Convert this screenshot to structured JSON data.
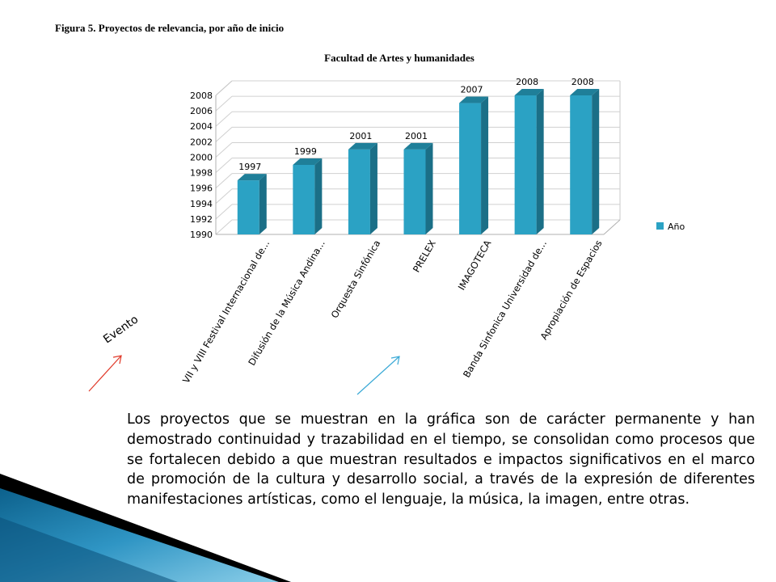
{
  "figure": {
    "caption": "Figura 5. Proyectos de relevancia, por año de inicio"
  },
  "chart_data": {
    "type": "bar",
    "title": "Facultad de Artes y humanidades",
    "xlabel": "Evento",
    "ylabel": "",
    "categories": [
      "VII y VIII Festival Internacional de...",
      "Difusión de la Música Andina...",
      "Orquesta Sinfónica",
      "PRELEX",
      "IMAGOTECA",
      "Banda Sinfonica Universidad de...",
      "Apropiación de Espacios"
    ],
    "series": [
      {
        "name": "Año",
        "values": [
          1997,
          1999,
          2001,
          2001,
          2007,
          2008,
          2008
        ]
      }
    ],
    "ylim": [
      1990,
      2008
    ],
    "yticks": [
      1990,
      1992,
      1994,
      1996,
      1998,
      2000,
      2002,
      2004,
      2006,
      2008
    ],
    "grid": true,
    "legend": "right",
    "colors": {
      "bar_front": "#2ba2c4",
      "bar_side": "#1b6f87",
      "bar_top": "#1f7f99"
    }
  },
  "paragraph": "Los proyectos que se muestran en la gráfica son de carácter permanente y han demostrado continuidad y trazabilidad en el tiempo, se consolidan como procesos que se fortalecen debido a que muestran resultados e impactos significativos en el marco de promoción de la cultura y desarrollo social, a través de la expresión de diferentes manifestaciones artísticas, como el lenguaje, la música, la imagen, entre otras."
}
